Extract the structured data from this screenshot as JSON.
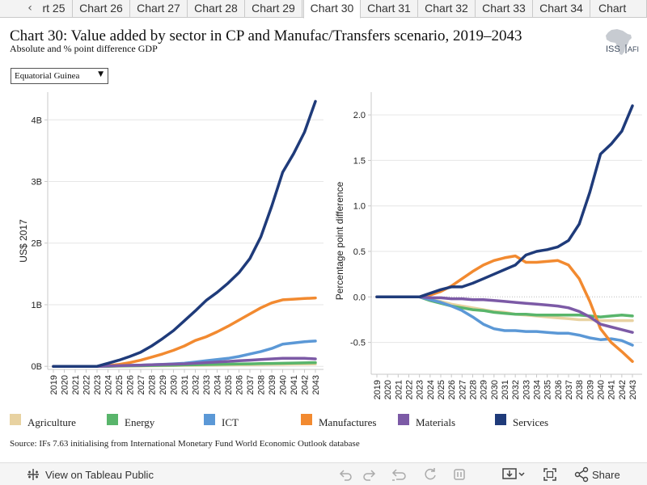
{
  "tabs": {
    "prev_arrow": "‹",
    "items": [
      {
        "label": "rt 25"
      },
      {
        "label": "Chart 26"
      },
      {
        "label": "Chart 27"
      },
      {
        "label": "Chart 28"
      },
      {
        "label": "Chart 29"
      },
      {
        "label": "Chart 30",
        "active": true
      },
      {
        "label": "Chart 31"
      },
      {
        "label": "Chart 32"
      },
      {
        "label": "Chart 33"
      },
      {
        "label": "Chart 34"
      },
      {
        "label": "Chart"
      }
    ]
  },
  "header": {
    "title": "Chart 30: Value added by sector in CP and Manufac/Transfers scenario, 2019–2043",
    "subtitle": "Absolute and % point difference GDP",
    "logo_text": "ISS",
    "logo_text2": "AFI"
  },
  "country_select": {
    "value": "Equatorial Guinea"
  },
  "colors": {
    "Agriculture": "#e8d2a1",
    "Energy": "#59b56b",
    "ICT": "#5b98d6",
    "Manufactures": "#f28a30",
    "Materials": "#7c5aa6",
    "Services": "#1f3b7a"
  },
  "chart_data": [
    {
      "type": "line",
      "ylabel": "US$ 2017",
      "y_ticks": [
        {
          "value": 0,
          "label": "0B"
        },
        {
          "value": 1,
          "label": "1B"
        },
        {
          "value": 2,
          "label": "2B"
        },
        {
          "value": 3,
          "label": "3B"
        },
        {
          "value": 4,
          "label": "4B"
        }
      ],
      "ylim": [
        -0.05,
        4.45
      ],
      "x": [
        "2019",
        "2020",
        "2021",
        "2022",
        "2023",
        "2024",
        "2025",
        "2026",
        "2027",
        "2028",
        "2029",
        "2030",
        "2031",
        "2032",
        "2033",
        "2034",
        "2035",
        "2036",
        "2037",
        "2038",
        "2039",
        "2040",
        "2041",
        "2042",
        "2043"
      ],
      "series": [
        {
          "name": "Agriculture",
          "values": [
            0,
            0,
            0,
            0,
            0,
            0,
            0.003,
            0.005,
            0.007,
            0.009,
            0.011,
            0.013,
            0.015,
            0.017,
            0.019,
            0.021,
            0.023,
            0.025,
            0.027,
            0.029,
            0.031,
            0.033,
            0.035,
            0.036,
            0.038
          ]
        },
        {
          "name": "Energy",
          "values": [
            0,
            0,
            0,
            0,
            0,
            0,
            0.005,
            0.008,
            0.011,
            0.014,
            0.017,
            0.02,
            0.023,
            0.026,
            0.029,
            0.032,
            0.035,
            0.038,
            0.041,
            0.044,
            0.047,
            0.05,
            0.053,
            0.056,
            0.06
          ]
        },
        {
          "name": "ICT",
          "values": [
            0,
            0,
            0,
            0,
            0,
            0.005,
            0.01,
            0.015,
            0.02,
            0.025,
            0.032,
            0.04,
            0.05,
            0.07,
            0.09,
            0.11,
            0.13,
            0.16,
            0.2,
            0.24,
            0.29,
            0.36,
            0.38,
            0.4,
            0.41
          ]
        },
        {
          "name": "Manufactures",
          "values": [
            0,
            0,
            0,
            0,
            0,
            0.01,
            0.03,
            0.06,
            0.1,
            0.15,
            0.2,
            0.26,
            0.33,
            0.42,
            0.48,
            0.56,
            0.65,
            0.75,
            0.85,
            0.95,
            1.03,
            1.08,
            1.09,
            1.1,
            1.11
          ]
        },
        {
          "name": "Materials",
          "values": [
            0,
            0,
            0,
            0,
            0,
            0.005,
            0.01,
            0.015,
            0.02,
            0.025,
            0.03,
            0.035,
            0.04,
            0.05,
            0.06,
            0.07,
            0.08,
            0.09,
            0.1,
            0.11,
            0.12,
            0.13,
            0.13,
            0.13,
            0.12
          ]
        },
        {
          "name": "Services",
          "values": [
            0,
            0,
            0,
            0,
            0,
            0.05,
            0.1,
            0.16,
            0.23,
            0.33,
            0.45,
            0.58,
            0.74,
            0.9,
            1.07,
            1.2,
            1.35,
            1.52,
            1.75,
            2.1,
            2.6,
            3.15,
            3.45,
            3.8,
            4.3
          ]
        }
      ]
    },
    {
      "type": "line",
      "ylabel": "Percentage point difference",
      "y_ticks": [
        {
          "value": -0.5,
          "label": "-0.5"
        },
        {
          "value": 0,
          "label": "0.0"
        },
        {
          "value": 0.5,
          "label": "0.5"
        },
        {
          "value": 1.0,
          "label": "1.0"
        },
        {
          "value": 1.5,
          "label": "1.5"
        },
        {
          "value": 2.0,
          "label": "2.0"
        }
      ],
      "ylim": [
        -0.85,
        2.25
      ],
      "x": [
        "2019",
        "2020",
        "2021",
        "2022",
        "2023",
        "2024",
        "2025",
        "2026",
        "2027",
        "2028",
        "2029",
        "2030",
        "2031",
        "2032",
        "2033",
        "2034",
        "2035",
        "2036",
        "2037",
        "2038",
        "2039",
        "2040",
        "2041",
        "2042",
        "2043"
      ],
      "series": [
        {
          "name": "Agriculture",
          "values": [
            0,
            0,
            0,
            0,
            0,
            -0.03,
            -0.05,
            -0.08,
            -0.1,
            -0.12,
            -0.14,
            -0.16,
            -0.17,
            -0.19,
            -0.2,
            -0.21,
            -0.22,
            -0.23,
            -0.24,
            -0.25,
            -0.25,
            -0.26,
            -0.26,
            -0.26,
            -0.26
          ]
        },
        {
          "name": "Energy",
          "values": [
            0,
            0,
            0,
            0,
            0,
            -0.04,
            -0.07,
            -0.1,
            -0.12,
            -0.14,
            -0.15,
            -0.17,
            -0.18,
            -0.19,
            -0.19,
            -0.2,
            -0.2,
            -0.2,
            -0.2,
            -0.2,
            -0.21,
            -0.22,
            -0.21,
            -0.2,
            -0.21
          ]
        },
        {
          "name": "ICT",
          "values": [
            0,
            0,
            0,
            0,
            0,
            -0.03,
            -0.06,
            -0.1,
            -0.15,
            -0.22,
            -0.3,
            -0.35,
            -0.37,
            -0.37,
            -0.38,
            -0.38,
            -0.39,
            -0.4,
            -0.4,
            -0.42,
            -0.45,
            -0.47,
            -0.46,
            -0.48,
            -0.53
          ]
        },
        {
          "name": "Manufactures",
          "values": [
            0,
            0,
            0,
            0,
            0,
            0.02,
            0.06,
            0.12,
            0.2,
            0.28,
            0.35,
            0.4,
            0.43,
            0.45,
            0.38,
            0.38,
            0.39,
            0.4,
            0.35,
            0.2,
            -0.05,
            -0.35,
            -0.5,
            -0.6,
            -0.71
          ]
        },
        {
          "name": "Materials",
          "values": [
            0,
            0,
            0,
            0,
            0,
            -0.01,
            -0.01,
            -0.02,
            -0.02,
            -0.03,
            -0.03,
            -0.04,
            -0.05,
            -0.06,
            -0.07,
            -0.08,
            -0.09,
            -0.1,
            -0.12,
            -0.16,
            -0.22,
            -0.3,
            -0.33,
            -0.36,
            -0.39
          ]
        },
        {
          "name": "Services",
          "values": [
            0,
            0,
            0,
            0,
            0,
            0.04,
            0.08,
            0.11,
            0.11,
            0.15,
            0.2,
            0.25,
            0.3,
            0.35,
            0.46,
            0.5,
            0.52,
            0.55,
            0.62,
            0.8,
            1.15,
            1.57,
            1.68,
            1.82,
            2.1
          ]
        }
      ]
    }
  ],
  "legend": [
    {
      "name": "Agriculture"
    },
    {
      "name": "Energy"
    },
    {
      "name": "ICT"
    },
    {
      "name": "Manufactures"
    },
    {
      "name": "Materials"
    },
    {
      "name": "Services"
    }
  ],
  "source": "Source: IFs 7.63 initialising from International Monetary Fund World Economic Outlook database",
  "footer": {
    "tableau_link": "View on Tableau Public",
    "share_label": "Share"
  }
}
